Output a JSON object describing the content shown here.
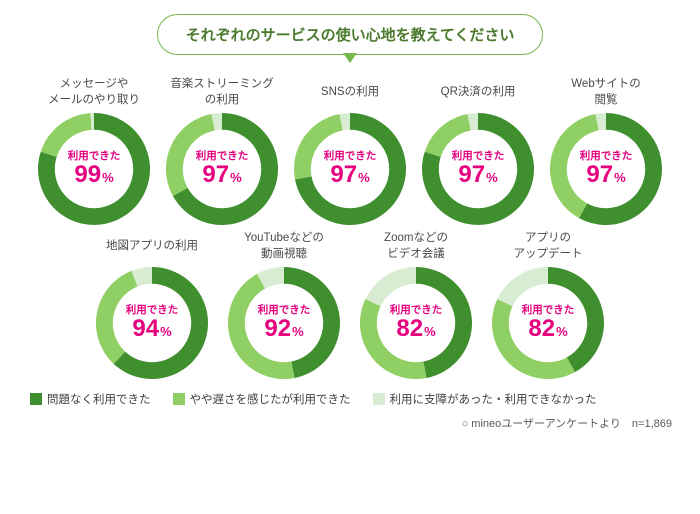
{
  "title": "それぞれのサービスの使い心地を教えてください",
  "colors": {
    "pill_border": "#74b84c",
    "pill_text": "#4b7a2e",
    "pill_tail": "#74b84c",
    "accent": "#e6007e",
    "seg1": "#3f8f2f",
    "seg2": "#8fcf63",
    "seg3": "#d7ecd0",
    "label_text": "#4a4a4a",
    "footnote_text": "#5a5a5a",
    "background": "#ffffff"
  },
  "donut": {
    "size": 112,
    "thickness_ratio": 0.3,
    "start_angle_deg": -90
  },
  "center_label": "利用できた",
  "percent_symbol": "%",
  "legend": [
    {
      "label": "問題なく利用できた",
      "color_key": "seg1"
    },
    {
      "label": "やや遅さを感じたが利用できた",
      "color_key": "seg2"
    },
    {
      "label": "利用に支障があった・利用できなかった",
      "color_key": "seg3"
    }
  ],
  "footnote": "○ mineoユーザーアンケートより　n=1,869",
  "rows": [
    [
      {
        "label": "メッセージや\nメールのやり取り",
        "center": 99,
        "segments": [
          80,
          19,
          1
        ]
      },
      {
        "label": "音楽ストリーミング\nの利用",
        "center": 97,
        "segments": [
          67,
          30,
          3
        ]
      },
      {
        "label": "SNSの利用",
        "center": 97,
        "segments": [
          72,
          25,
          3
        ]
      },
      {
        "label": "QR決済の利用",
        "center": 97,
        "segments": [
          80,
          17,
          3
        ]
      },
      {
        "label": "Webサイトの\n閲覧",
        "center": 97,
        "segments": [
          58,
          39,
          3
        ]
      }
    ],
    [
      {
        "label": "地図アプリの利用",
        "center": 94,
        "segments": [
          62,
          32,
          6
        ]
      },
      {
        "label": "YouTubeなどの\n動画視聴",
        "center": 92,
        "segments": [
          47,
          45,
          8
        ]
      },
      {
        "label": "Zoomなどの\nビデオ会議",
        "center": 82,
        "segments": [
          47,
          35,
          18
        ]
      },
      {
        "label": "アプリの\nアップデート",
        "center": 82,
        "segments": [
          42,
          40,
          18
        ]
      }
    ]
  ]
}
